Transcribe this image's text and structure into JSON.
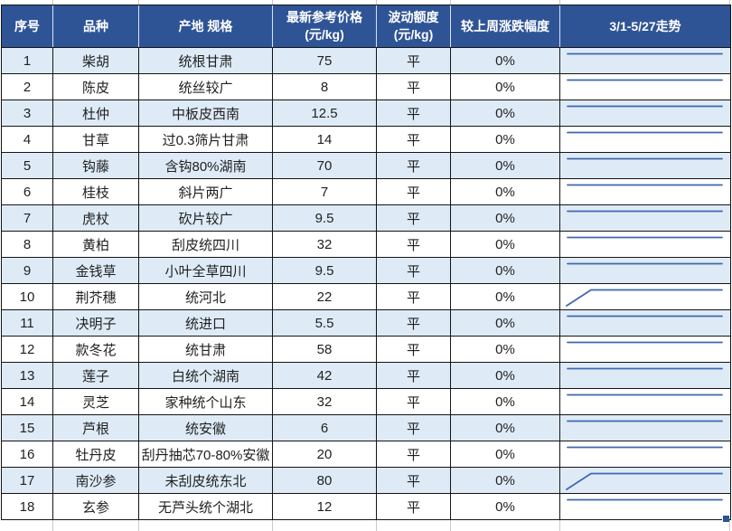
{
  "table": {
    "columns": [
      {
        "key": "index",
        "label": "序号"
      },
      {
        "key": "name",
        "label": "品种"
      },
      {
        "key": "spec",
        "label": "产地 规格"
      },
      {
        "key": "price",
        "label": "最新参考价格",
        "label2": "(元/kg)"
      },
      {
        "key": "fluct",
        "label": "波动额度",
        "label2": "(元/kg)"
      },
      {
        "key": "change",
        "label": "较上周涨跌幅度"
      },
      {
        "key": "trend",
        "label": "3/1-5/27走势"
      }
    ],
    "rows": [
      {
        "index": "1",
        "name": "柴胡",
        "spec": "统根甘肃",
        "price": "75",
        "fluct": "平",
        "change": "0%",
        "trend": "flat"
      },
      {
        "index": "2",
        "name": "陈皮",
        "spec": "统丝较广",
        "price": "8",
        "fluct": "平",
        "change": "0%",
        "trend": "flat"
      },
      {
        "index": "3",
        "name": "杜仲",
        "spec": "中板皮西南",
        "price": "12.5",
        "fluct": "平",
        "change": "0%",
        "trend": "flat"
      },
      {
        "index": "4",
        "name": "甘草",
        "spec": "过0.3筛片甘肃",
        "price": "14",
        "fluct": "平",
        "change": "0%",
        "trend": "flat"
      },
      {
        "index": "5",
        "name": "钩藤",
        "spec": "含钩80%湖南",
        "price": "70",
        "fluct": "平",
        "change": "0%",
        "trend": "flat"
      },
      {
        "index": "6",
        "name": "桂枝",
        "spec": "斜片两广",
        "price": "7",
        "fluct": "平",
        "change": "0%",
        "trend": "flat"
      },
      {
        "index": "7",
        "name": "虎杖",
        "spec": "砍片较广",
        "price": "9.5",
        "fluct": "平",
        "change": "0%",
        "trend": "flat"
      },
      {
        "index": "8",
        "name": "黄柏",
        "spec": "刮皮统四川",
        "price": "32",
        "fluct": "平",
        "change": "0%",
        "trend": "flat"
      },
      {
        "index": "9",
        "name": "金钱草",
        "spec": "小叶全草四川",
        "price": "9.5",
        "fluct": "平",
        "change": "0%",
        "trend": "flat"
      },
      {
        "index": "10",
        "name": "荆芥穗",
        "spec": "统河北",
        "price": "22",
        "fluct": "平",
        "change": "0%",
        "trend": "rise-flat"
      },
      {
        "index": "11",
        "name": "决明子",
        "spec": "统进口",
        "price": "5.5",
        "fluct": "平",
        "change": "0%",
        "trend": "flat"
      },
      {
        "index": "12",
        "name": "款冬花",
        "spec": "统甘肃",
        "price": "58",
        "fluct": "平",
        "change": "0%",
        "trend": "flat"
      },
      {
        "index": "13",
        "name": "莲子",
        "spec": "白统个湖南",
        "price": "42",
        "fluct": "平",
        "change": "0%",
        "trend": "flat"
      },
      {
        "index": "14",
        "name": "灵芝",
        "spec": "家种统个山东",
        "price": "32",
        "fluct": "平",
        "change": "0%",
        "trend": "flat"
      },
      {
        "index": "15",
        "name": "芦根",
        "spec": "统安徽",
        "price": "6",
        "fluct": "平",
        "change": "0%",
        "trend": "flat"
      },
      {
        "index": "16",
        "name": "牡丹皮",
        "spec": "刮丹抽芯70-80%安徽",
        "price": "20",
        "fluct": "平",
        "change": "0%",
        "trend": "flat"
      },
      {
        "index": "17",
        "name": "南沙参",
        "spec": "未刮皮统东北",
        "price": "80",
        "fluct": "平",
        "change": "0%",
        "trend": "rise-flat"
      },
      {
        "index": "18",
        "name": "玄参",
        "spec": "无芦头统个湖北",
        "price": "12",
        "fluct": "平",
        "change": "0%",
        "trend": "flat"
      }
    ]
  },
  "colors": {
    "header_bg": "#2F5496",
    "header_text": "#FFFFFF",
    "row_alt": "#DEEBF7",
    "row_bg": "#FFFFFF",
    "border": "#141414",
    "cell_text": "#1F1F1F",
    "sparkline": "#3E68AE",
    "fill_handle": "#2E5395"
  }
}
